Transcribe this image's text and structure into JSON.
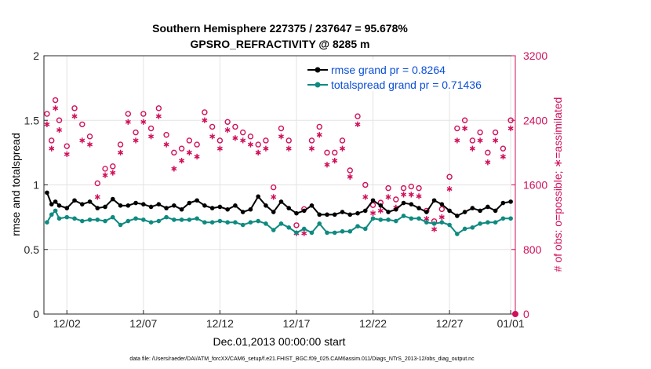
{
  "chart_data": {
    "type": "line",
    "title_line1": "Southern Hemisphere 227375 / 237647 = 95.678%",
    "title_line2": "GPSRO_REFRACTIVITY @ 8285 m",
    "xlabel": "Dec.01,2013 00:00:00 start",
    "ylabel": "rmse and totalspread",
    "ylabel_right": "# of obs: o=possible; ∗=assimilated",
    "ylim": [
      0,
      2
    ],
    "ylim_right": [
      0,
      3200
    ],
    "xlim": [
      0.5,
      31.3
    ],
    "x_ticks": [
      {
        "x": 2,
        "label": "12/02"
      },
      {
        "x": 7,
        "label": "12/07"
      },
      {
        "x": 12,
        "label": "12/12"
      },
      {
        "x": 17,
        "label": "12/17"
      },
      {
        "x": 22,
        "label": "12/22"
      },
      {
        "x": 27,
        "label": "12/27"
      },
      {
        "x": 31,
        "label": "01/01"
      }
    ],
    "y_ticks": [
      {
        "v": 0,
        "label": "0"
      },
      {
        "v": 0.5,
        "label": "0.5"
      },
      {
        "v": 1,
        "label": "1"
      },
      {
        "v": 1.5,
        "label": "1.5"
      },
      {
        "v": 2,
        "label": "2"
      }
    ],
    "y_ticks_right": [
      {
        "v": 0,
        "label": "0"
      },
      {
        "v": 800,
        "label": "800"
      },
      {
        "v": 1600,
        "label": "1600"
      },
      {
        "v": 2400,
        "label": "2400"
      },
      {
        "v": 3200,
        "label": "3200"
      }
    ],
    "legend": [
      {
        "name": "rmse grand pr = 0.8264",
        "color": "#000000"
      },
      {
        "name": "totalspread grand pr = 0.71436",
        "color": "#0e8a80"
      }
    ],
    "series": [
      {
        "name": "rmse",
        "color": "#000000",
        "x": [
          0.7,
          1.0,
          1.25,
          1.5,
          2.0,
          2.5,
          3.0,
          3.5,
          4.0,
          4.5,
          5.0,
          5.5,
          6.0,
          6.5,
          7.0,
          7.5,
          8.0,
          8.5,
          9.0,
          9.5,
          10.0,
          10.5,
          11.0,
          11.5,
          12.0,
          12.5,
          13.0,
          13.5,
          14.0,
          14.5,
          15.0,
          15.5,
          16.0,
          16.5,
          17.0,
          17.5,
          18.0,
          18.5,
          19.0,
          19.5,
          20.0,
          20.5,
          21.0,
          21.5,
          22.0,
          22.5,
          23.0,
          23.5,
          24.0,
          24.5,
          25.0,
          25.5,
          26.0,
          26.5,
          27.0,
          27.5,
          28.0,
          28.5,
          29.0,
          29.5,
          30.0,
          30.5,
          31.0
        ],
        "values": [
          0.94,
          0.85,
          0.87,
          0.84,
          0.82,
          0.88,
          0.85,
          0.87,
          0.82,
          0.83,
          0.89,
          0.84,
          0.84,
          0.86,
          0.85,
          0.83,
          0.85,
          0.82,
          0.84,
          0.81,
          0.86,
          0.88,
          0.84,
          0.82,
          0.83,
          0.81,
          0.84,
          0.79,
          0.81,
          0.91,
          0.84,
          0.79,
          0.87,
          0.82,
          0.78,
          0.8,
          0.84,
          0.77,
          0.77,
          0.77,
          0.79,
          0.77,
          0.78,
          0.8,
          0.88,
          0.84,
          0.79,
          0.81,
          0.86,
          0.85,
          0.82,
          0.79,
          0.88,
          0.85,
          0.8,
          0.76,
          0.79,
          0.82,
          0.8,
          0.83,
          0.8,
          0.86,
          0.87
        ]
      },
      {
        "name": "totalspread",
        "color": "#0e8a80",
        "x": [
          0.7,
          1.0,
          1.25,
          1.5,
          2.0,
          2.5,
          3.0,
          3.5,
          4.0,
          4.5,
          5.0,
          5.5,
          6.0,
          6.5,
          7.0,
          7.5,
          8.0,
          8.5,
          9.0,
          9.5,
          10.0,
          10.5,
          11.0,
          11.5,
          12.0,
          12.5,
          13.0,
          13.5,
          14.0,
          14.5,
          15.0,
          15.5,
          16.0,
          16.5,
          17.0,
          17.5,
          18.0,
          18.5,
          19.0,
          19.5,
          20.0,
          20.5,
          21.0,
          21.5,
          22.0,
          22.5,
          23.0,
          23.5,
          24.0,
          24.5,
          25.0,
          25.5,
          26.0,
          26.5,
          27.0,
          27.5,
          28.0,
          28.5,
          29.0,
          29.5,
          30.0,
          30.5,
          31.0
        ],
        "values": [
          0.71,
          0.77,
          0.8,
          0.74,
          0.75,
          0.74,
          0.72,
          0.73,
          0.73,
          0.72,
          0.75,
          0.69,
          0.72,
          0.74,
          0.73,
          0.71,
          0.72,
          0.75,
          0.73,
          0.73,
          0.73,
          0.74,
          0.71,
          0.71,
          0.72,
          0.71,
          0.71,
          0.69,
          0.71,
          0.72,
          0.7,
          0.65,
          0.7,
          0.67,
          0.63,
          0.66,
          0.63,
          0.7,
          0.63,
          0.63,
          0.64,
          0.64,
          0.68,
          0.66,
          0.74,
          0.73,
          0.73,
          0.72,
          0.76,
          0.74,
          0.74,
          0.71,
          0.7,
          0.71,
          0.69,
          0.62,
          0.66,
          0.67,
          0.7,
          0.71,
          0.71,
          0.74,
          0.74
        ]
      },
      {
        "name": "possible",
        "color": "#d0105a",
        "marker": "circle",
        "x": [
          0.7,
          1.0,
          1.25,
          1.5,
          2.0,
          2.5,
          3.0,
          3.5,
          4.0,
          4.5,
          5.0,
          5.5,
          6.0,
          6.5,
          7.0,
          7.5,
          8.0,
          8.5,
          9.0,
          9.5,
          10.0,
          10.5,
          11.0,
          11.5,
          12.0,
          12.5,
          13.0,
          13.5,
          14.0,
          14.5,
          15.0,
          15.5,
          16.0,
          16.5,
          17.0,
          17.5,
          18.0,
          18.5,
          19.0,
          19.5,
          20.0,
          20.5,
          21.0,
          21.5,
          22.0,
          22.5,
          23.0,
          23.5,
          24.0,
          24.5,
          25.0,
          25.5,
          26.0,
          26.5,
          27.0,
          27.5,
          28.0,
          28.5,
          29.0,
          29.5,
          30.0,
          30.5,
          31.0
        ],
        "values": [
          2480,
          2150,
          2650,
          2400,
          2080,
          2550,
          2350,
          2200,
          1620,
          1800,
          1830,
          2100,
          2480,
          2250,
          2480,
          2300,
          2550,
          2220,
          2000,
          2050,
          2150,
          2100,
          2500,
          2320,
          2150,
          2380,
          2320,
          2250,
          2200,
          2100,
          2150,
          1570,
          2300,
          2150,
          1100,
          1300,
          2150,
          2320,
          2000,
          2000,
          2150,
          1780,
          2450,
          1600,
          1350,
          1380,
          1560,
          1420,
          1560,
          1580,
          1560,
          1280,
          1150,
          1300,
          1700,
          2300,
          2400,
          2150,
          2250,
          2000,
          2250,
          2050,
          2400
        ]
      },
      {
        "name": "assimilated",
        "color": "#d0105a",
        "marker": "star",
        "x": [
          0.7,
          1.0,
          1.25,
          1.5,
          2.0,
          2.5,
          3.0,
          3.5,
          4.0,
          4.5,
          5.0,
          5.5,
          6.0,
          6.5,
          7.0,
          7.5,
          8.0,
          8.5,
          9.0,
          9.5,
          10.0,
          10.5,
          11.0,
          11.5,
          12.0,
          12.5,
          13.0,
          13.5,
          14.0,
          14.5,
          15.0,
          15.5,
          16.0,
          16.5,
          17.0,
          17.5,
          18.0,
          18.5,
          19.0,
          19.5,
          20.0,
          20.5,
          21.0,
          21.5,
          22.0,
          22.5,
          23.0,
          23.5,
          24.0,
          24.5,
          25.0,
          25.5,
          26.0,
          26.5,
          27.0,
          27.5,
          28.0,
          28.5,
          29.0,
          29.5,
          30.0,
          30.5,
          31.0
        ],
        "values": [
          2350,
          2050,
          2550,
          2280,
          1980,
          2450,
          2150,
          2100,
          1450,
          1720,
          1750,
          2000,
          2380,
          2150,
          2380,
          2200,
          2450,
          2100,
          1800,
          1900,
          2000,
          1950,
          2400,
          2200,
          2050,
          2280,
          2180,
          2150,
          2100,
          2000,
          2050,
          1450,
          2200,
          2050,
          1000,
          1000,
          2050,
          2220,
          1850,
          1900,
          2050,
          1700,
          2350,
          1450,
          1250,
          1280,
          1450,
          1320,
          1480,
          1480,
          1460,
          1180,
          1050,
          1200,
          1550,
          2150,
          2300,
          2050,
          2150,
          1880,
          2150,
          1950,
          2300
        ]
      }
    ]
  },
  "footer": "data file: /Users/raeder/DAI/ATM_forcXX/CAM6_setup/f.e21.FHIST_BGC.f09_025.CAM6assim.011/Diags_NTrS_2013-12/obs_diag_output.nc"
}
